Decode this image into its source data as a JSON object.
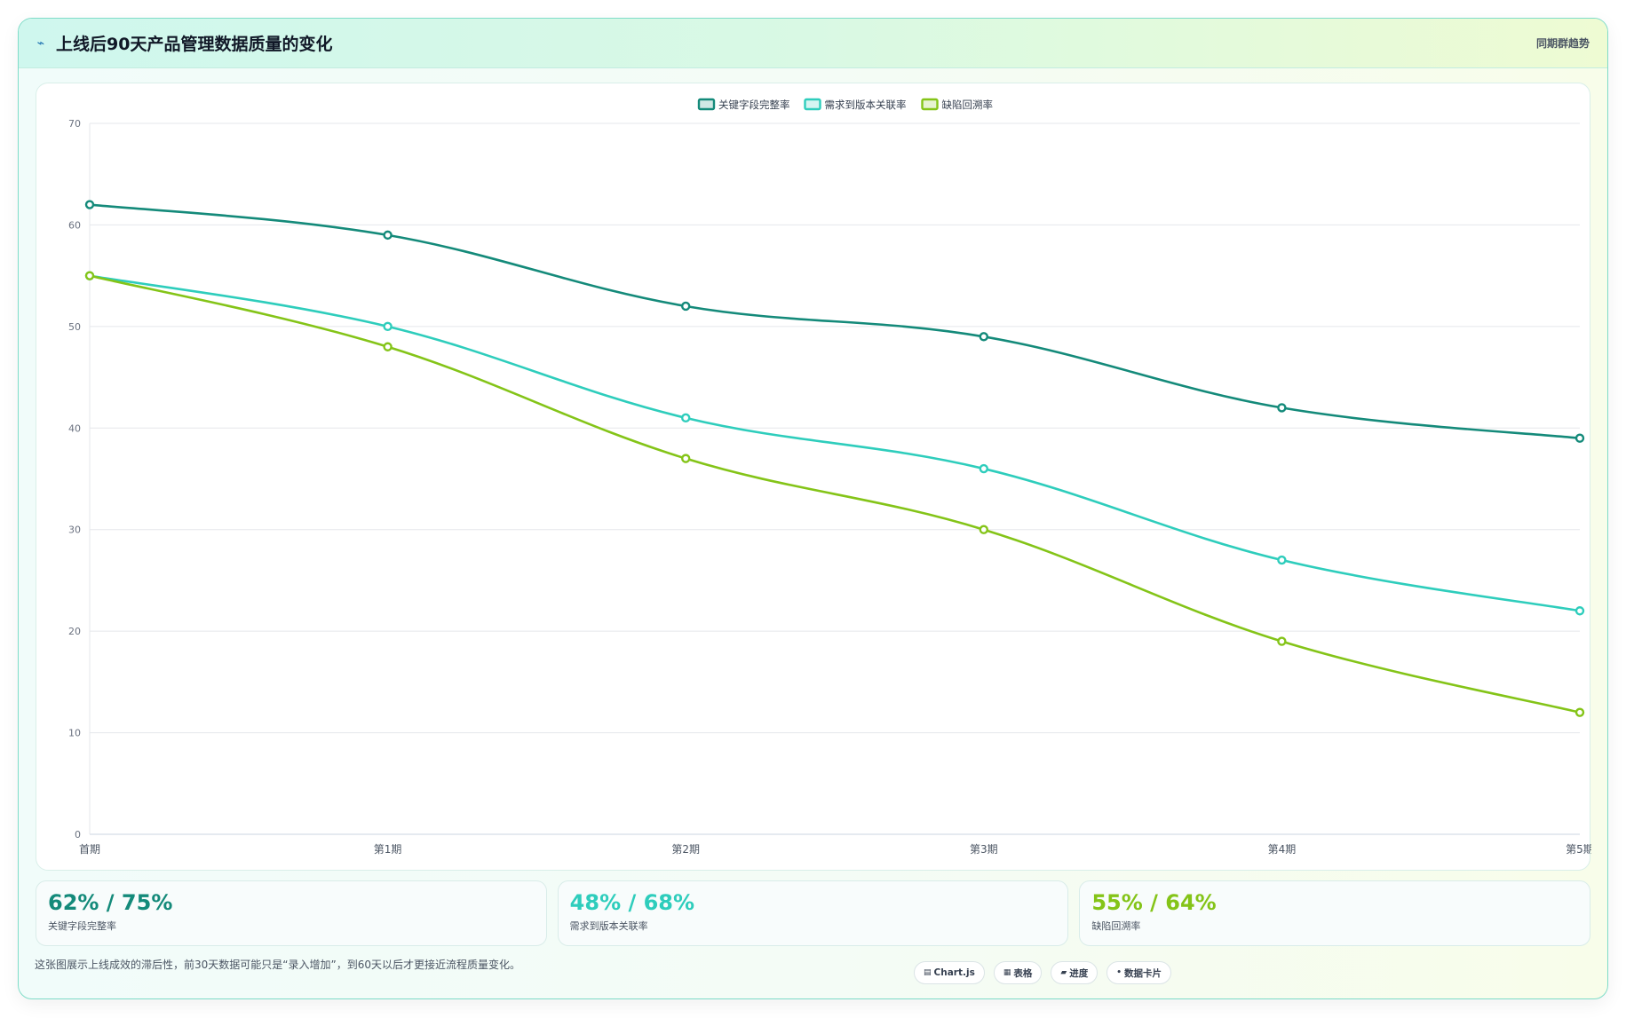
{
  "header": {
    "title": "上线后90天产品管理数据质量的变化",
    "title_icon": "trend-line-icon",
    "right_label": "同期群趋势"
  },
  "chart_data": {
    "type": "line",
    "categories": [
      "首期",
      "第1期",
      "第2期",
      "第3期",
      "第4期",
      "第5期"
    ],
    "series": [
      {
        "name": "关键字段完整率",
        "values": [
          62,
          59,
          52,
          49,
          42,
          39
        ],
        "color": "#148a7a"
      },
      {
        "name": "需求到版本关联率",
        "values": [
          55,
          50,
          41,
          36,
          27,
          22
        ],
        "color": "#2ecdbc"
      },
      {
        "name": "缺陷回溯率",
        "values": [
          55,
          48,
          37,
          30,
          19,
          12
        ],
        "color": "#84c418"
      }
    ],
    "yticks": [
      0,
      10,
      20,
      30,
      40,
      50,
      60,
      70
    ],
    "ylim": [
      0,
      70
    ],
    "grid": true,
    "legend": "top-center"
  },
  "stats": [
    {
      "value": "62% / 75%",
      "label": "关键字段完整率",
      "color": "#148a7a"
    },
    {
      "value": "48% / 68%",
      "label": "需求到版本关联率",
      "color": "#2ecdbc"
    },
    {
      "value": "55% / 64%",
      "label": "缺陷回溯率",
      "color": "#84c418"
    }
  ],
  "footer": {
    "note": "这张图展示上线成效的滞后性，前30天数据可能只是“录入增加”，到60天以后才更接近流程质量变化。",
    "tags": [
      {
        "icon": "▤",
        "icon_name": "chart-icon",
        "label": "Chart.js"
      },
      {
        "icon": "▦",
        "icon_name": "table-icon",
        "label": "表格"
      },
      {
        "icon": "▰",
        "icon_name": "progress-icon",
        "label": "进度"
      },
      {
        "icon": "•",
        "icon_name": "card-icon",
        "label": "数据卡片"
      }
    ]
  }
}
